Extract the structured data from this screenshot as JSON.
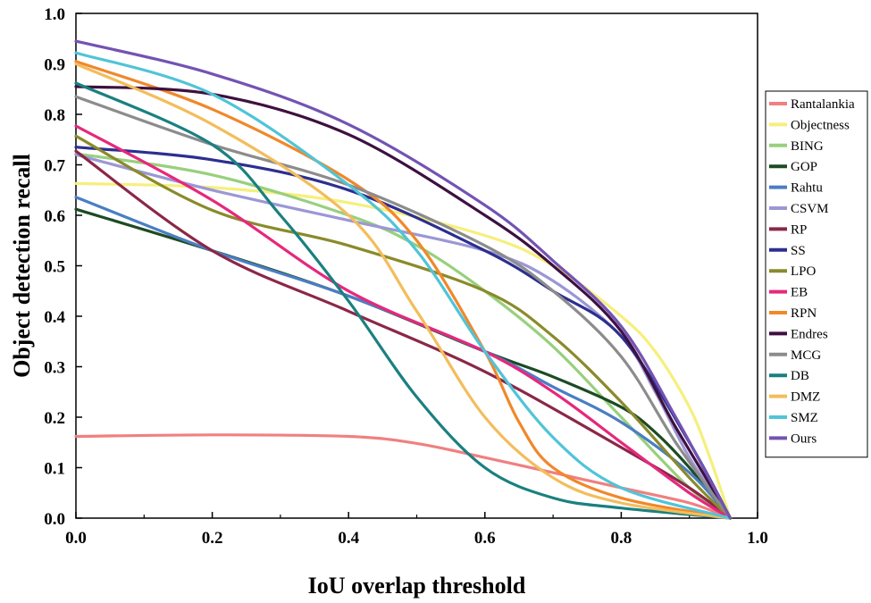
{
  "chart_data": {
    "type": "line",
    "title": "",
    "xlabel": "IoU overlap threshold",
    "ylabel": "Object detection recall",
    "xlim": [
      0.0,
      1.0
    ],
    "ylim": [
      0.0,
      1.0
    ],
    "xticks": [
      "0.0",
      "0.2",
      "0.4",
      "0.6",
      "0.8",
      "1.0"
    ],
    "yticks": [
      "0.0",
      "0.1",
      "0.2",
      "0.3",
      "0.4",
      "0.5",
      "0.6",
      "0.7",
      "0.8",
      "0.9",
      "1.0"
    ],
    "grid": false,
    "legend_position": "right",
    "series": [
      {
        "name": "Rantalankia",
        "color": "#f08080",
        "x": [
          0.0,
          0.2,
          0.4,
          0.5,
          0.6,
          0.7,
          0.8,
          0.9,
          0.96
        ],
        "y": [
          0.162,
          0.165,
          0.162,
          0.148,
          0.12,
          0.09,
          0.06,
          0.03,
          0.0
        ]
      },
      {
        "name": "Objectness",
        "color": "#f6ef7c",
        "x": [
          0.0,
          0.2,
          0.4,
          0.6,
          0.7,
          0.8,
          0.85,
          0.9,
          0.93,
          0.96
        ],
        "y": [
          0.663,
          0.655,
          0.625,
          0.56,
          0.5,
          0.4,
          0.33,
          0.22,
          0.12,
          0.0
        ]
      },
      {
        "name": "BING",
        "color": "#98d07c",
        "x": [
          0.0,
          0.2,
          0.4,
          0.5,
          0.6,
          0.7,
          0.8,
          0.9,
          0.96
        ],
        "y": [
          0.722,
          0.68,
          0.6,
          0.54,
          0.45,
          0.34,
          0.2,
          0.06,
          0.0
        ]
      },
      {
        "name": "GOP",
        "color": "#1d4b24",
        "x": [
          0.0,
          0.2,
          0.4,
          0.6,
          0.7,
          0.8,
          0.85,
          0.9,
          0.96
        ],
        "y": [
          0.612,
          0.53,
          0.44,
          0.33,
          0.28,
          0.22,
          0.17,
          0.1,
          0.0
        ]
      },
      {
        "name": "Rahtu",
        "color": "#4a7ec4",
        "x": [
          0.0,
          0.2,
          0.4,
          0.6,
          0.7,
          0.8,
          0.9,
          0.96
        ],
        "y": [
          0.636,
          0.53,
          0.44,
          0.33,
          0.26,
          0.19,
          0.09,
          0.0
        ]
      },
      {
        "name": "CSVM",
        "color": "#9b97d6",
        "x": [
          0.0,
          0.2,
          0.4,
          0.6,
          0.7,
          0.8,
          0.85,
          0.9,
          0.96
        ],
        "y": [
          0.72,
          0.65,
          0.59,
          0.53,
          0.47,
          0.36,
          0.25,
          0.12,
          0.0
        ]
      },
      {
        "name": "RP",
        "color": "#8b2748",
        "x": [
          0.0,
          0.2,
          0.4,
          0.6,
          0.8,
          0.9,
          0.96
        ],
        "y": [
          0.727,
          0.53,
          0.41,
          0.29,
          0.14,
          0.06,
          0.0
        ]
      },
      {
        "name": "SS",
        "color": "#2c2f8f",
        "x": [
          0.0,
          0.2,
          0.4,
          0.6,
          0.7,
          0.8,
          0.9,
          0.96
        ],
        "y": [
          0.735,
          0.71,
          0.65,
          0.53,
          0.45,
          0.36,
          0.15,
          0.0
        ]
      },
      {
        "name": "LPO",
        "color": "#8a8a2a",
        "x": [
          0.0,
          0.2,
          0.4,
          0.6,
          0.7,
          0.8,
          0.9,
          0.96
        ],
        "y": [
          0.757,
          0.61,
          0.54,
          0.45,
          0.36,
          0.23,
          0.08,
          0.0
        ]
      },
      {
        "name": "EB",
        "color": "#e6287c",
        "x": [
          0.0,
          0.2,
          0.4,
          0.6,
          0.7,
          0.8,
          0.9,
          0.96
        ],
        "y": [
          0.777,
          0.63,
          0.45,
          0.33,
          0.25,
          0.15,
          0.05,
          0.0
        ]
      },
      {
        "name": "RPN",
        "color": "#f0882a",
        "x": [
          0.0,
          0.2,
          0.4,
          0.5,
          0.6,
          0.65,
          0.7,
          0.8,
          0.96
        ],
        "y": [
          0.905,
          0.81,
          0.67,
          0.55,
          0.33,
          0.19,
          0.1,
          0.04,
          0.0
        ]
      },
      {
        "name": "Endres",
        "color": "#3e1040",
        "x": [
          0.0,
          0.2,
          0.4,
          0.6,
          0.7,
          0.8,
          0.88,
          0.96
        ],
        "y": [
          0.855,
          0.84,
          0.76,
          0.6,
          0.5,
          0.37,
          0.18,
          0.0
        ]
      },
      {
        "name": "MCG",
        "color": "#8c8c8c",
        "x": [
          0.0,
          0.2,
          0.4,
          0.6,
          0.7,
          0.8,
          0.88,
          0.96
        ],
        "y": [
          0.835,
          0.74,
          0.66,
          0.54,
          0.45,
          0.32,
          0.15,
          0.0
        ]
      },
      {
        "name": "DB",
        "color": "#1a8080",
        "x": [
          0.0,
          0.2,
          0.3,
          0.4,
          0.5,
          0.6,
          0.7,
          0.8,
          0.96
        ],
        "y": [
          0.862,
          0.74,
          0.6,
          0.43,
          0.24,
          0.1,
          0.04,
          0.02,
          0.0
        ]
      },
      {
        "name": "DMZ",
        "color": "#f3bd5c",
        "x": [
          0.0,
          0.2,
          0.4,
          0.5,
          0.6,
          0.7,
          0.8,
          0.96
        ],
        "y": [
          0.9,
          0.78,
          0.6,
          0.41,
          0.2,
          0.08,
          0.03,
          0.0
        ]
      },
      {
        "name": "SMZ",
        "color": "#50c4d8",
        "x": [
          0.0,
          0.2,
          0.4,
          0.5,
          0.6,
          0.7,
          0.8,
          0.96
        ],
        "y": [
          0.922,
          0.84,
          0.66,
          0.53,
          0.33,
          0.16,
          0.06,
          0.0
        ]
      },
      {
        "name": "Ours",
        "color": "#7353b4",
        "x": [
          0.0,
          0.2,
          0.4,
          0.6,
          0.7,
          0.8,
          0.88,
          0.96
        ],
        "y": [
          0.945,
          0.88,
          0.78,
          0.62,
          0.51,
          0.38,
          0.2,
          0.0
        ]
      }
    ]
  }
}
